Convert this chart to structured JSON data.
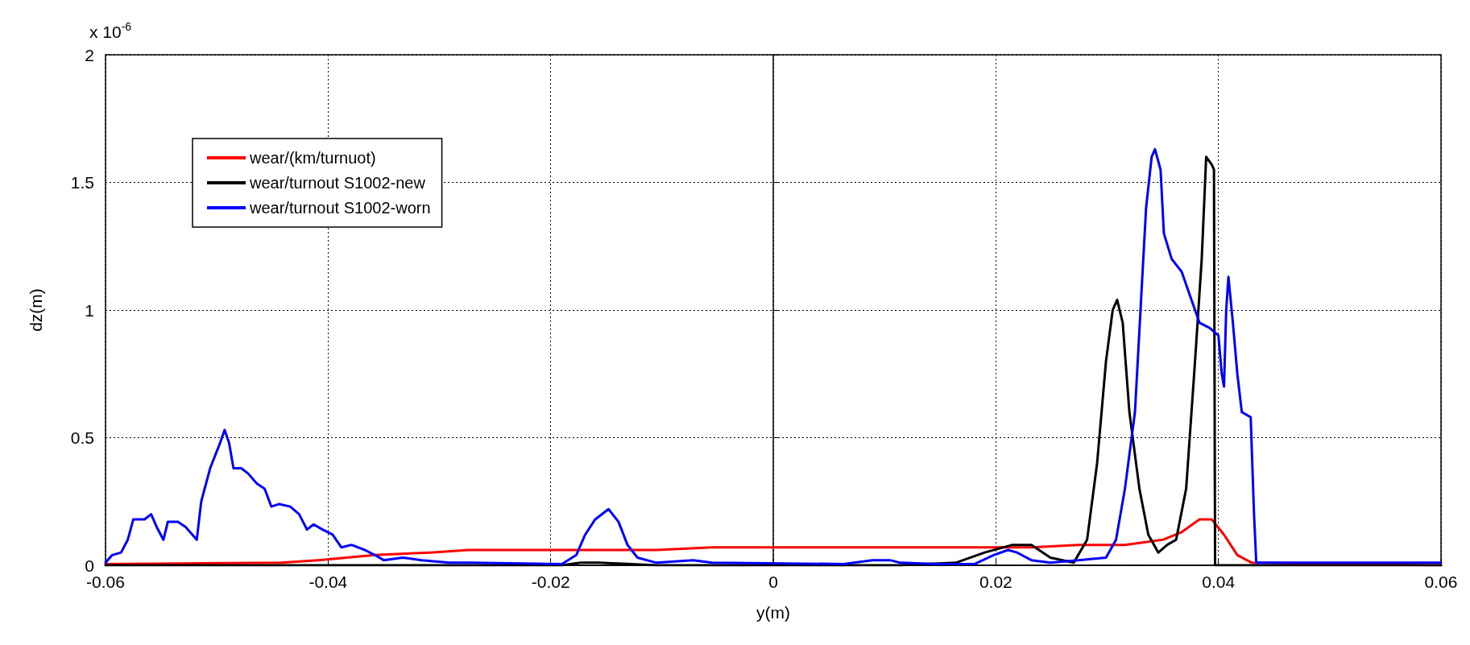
{
  "chart_data": {
    "type": "line",
    "xlabel": "y(m)",
    "ylabel": "dz(m)",
    "annotations": [
      "x 10$^{-6}$"
    ],
    "xlim": [
      -0.06,
      0.06
    ],
    "xticks": [
      -0.06,
      -0.04,
      -0.02,
      0,
      0.02,
      0.04,
      0.06
    ],
    "ylim": [
      0,
      2
    ],
    "yticks": [
      0,
      0.5,
      1,
      1.5,
      2
    ],
    "grid": true,
    "legend": "top left",
    "marker": "none",
    "line_style": "solid",
    "series": [
      {
        "name": "wear/(km/turnuot)",
        "color": "#ff0000",
        "x": [
          -0.06,
          -0.0442,
          -0.0409,
          -0.0358,
          -0.0308,
          -0.0274,
          -0.0105,
          -0.0055,
          0.0232,
          0.0274,
          0.0316,
          0.035,
          0.0367,
          0.0383,
          0.0394,
          0.0405,
          0.0417,
          0.043,
          0.06
        ],
        "values": [
          0.005,
          0.01,
          0.02,
          0.04,
          0.05,
          0.06,
          0.06,
          0.07,
          0.07,
          0.08,
          0.08,
          0.1,
          0.13,
          0.18,
          0.18,
          0.12,
          0.04,
          0.01,
          0
        ]
      },
      {
        "name": "wear/turnout S1002-new",
        "color": "#000000",
        "x": [
          -0.06,
          -0.019,
          -0.0173,
          -0.0156,
          -0.0105,
          0.0114,
          0.0164,
          0.019,
          0.0215,
          0.0232,
          0.0249,
          0.027,
          0.0282,
          0.0291,
          0.0299,
          0.0305,
          0.0309,
          0.0314,
          0.032,
          0.0329,
          0.0337,
          0.0346,
          0.0354,
          0.0362,
          0.0371,
          0.0379,
          0.0385,
          0.0389,
          0.0394,
          0.0396,
          0.0397,
          0.06
        ],
        "values": [
          0,
          0,
          0.01,
          0.01,
          0,
          0,
          0.01,
          0.05,
          0.08,
          0.08,
          0.03,
          0.01,
          0.1,
          0.4,
          0.8,
          1,
          1.04,
          0.95,
          0.6,
          0.3,
          0.12,
          0.05,
          0.08,
          0.1,
          0.3,
          0.8,
          1.2,
          1.6,
          1.57,
          1.55,
          0,
          0
        ]
      },
      {
        "name": "wear/turnout S1002-worn",
        "color": "#0000ff",
        "x": [
          -0.06,
          -0.0594,
          -0.0586,
          -0.058,
          -0.0575,
          -0.0565,
          -0.0559,
          -0.0554,
          -0.0548,
          -0.0544,
          -0.0535,
          -0.0528,
          -0.0518,
          -0.0514,
          -0.0506,
          -0.0497,
          -0.0493,
          -0.0489,
          -0.0485,
          -0.0478,
          -0.0472,
          -0.0464,
          -0.0457,
          -0.0451,
          -0.0444,
          -0.0434,
          -0.0426,
          -0.0419,
          -0.0413,
          -0.0405,
          -0.0396,
          -0.0388,
          -0.0379,
          -0.0367,
          -0.0358,
          -0.035,
          -0.0333,
          -0.0316,
          -0.0291,
          -0.0274,
          -0.019,
          -0.0177,
          -0.0169,
          -0.016,
          -0.0148,
          -0.0139,
          -0.0131,
          -0.0122,
          -0.0105,
          -0.0072,
          -0.0055,
          0.0063,
          0.0089,
          0.0105,
          0.0114,
          0.0148,
          0.0181,
          0.0198,
          0.0211,
          0.0219,
          0.0232,
          0.0249,
          0.0274,
          0.0299,
          0.0308,
          0.0316,
          0.0325,
          0.033,
          0.0335,
          0.034,
          0.0343,
          0.0348,
          0.0351,
          0.0358,
          0.0367,
          0.0375,
          0.0383,
          0.0392,
          0.04,
          0.0403,
          0.0405,
          0.0407,
          0.0409,
          0.0413,
          0.0417,
          0.0421,
          0.0429,
          0.0432,
          0.0434,
          0.06
        ],
        "values": [
          0.01,
          0.04,
          0.05,
          0.1,
          0.18,
          0.18,
          0.2,
          0.15,
          0.1,
          0.17,
          0.17,
          0.15,
          0.1,
          0.25,
          0.38,
          0.48,
          0.53,
          0.48,
          0.38,
          0.38,
          0.36,
          0.32,
          0.3,
          0.23,
          0.24,
          0.23,
          0.2,
          0.14,
          0.16,
          0.14,
          0.12,
          0.07,
          0.08,
          0.06,
          0.04,
          0.02,
          0.03,
          0.02,
          0.01,
          0.01,
          0.005,
          0.04,
          0.12,
          0.18,
          0.22,
          0.17,
          0.08,
          0.03,
          0.01,
          0.02,
          0.01,
          0.005,
          0.02,
          0.02,
          0.01,
          0.005,
          0.005,
          0.04,
          0.06,
          0.05,
          0.02,
          0.01,
          0.02,
          0.03,
          0.1,
          0.3,
          0.6,
          1,
          1.4,
          1.6,
          1.63,
          1.55,
          1.3,
          1.2,
          1.15,
          1.05,
          0.95,
          0.93,
          0.9,
          0.75,
          0.7,
          1,
          1.13,
          0.95,
          0.75,
          0.6,
          0.58,
          0.2,
          0.01,
          0.01
        ]
      }
    ]
  }
}
